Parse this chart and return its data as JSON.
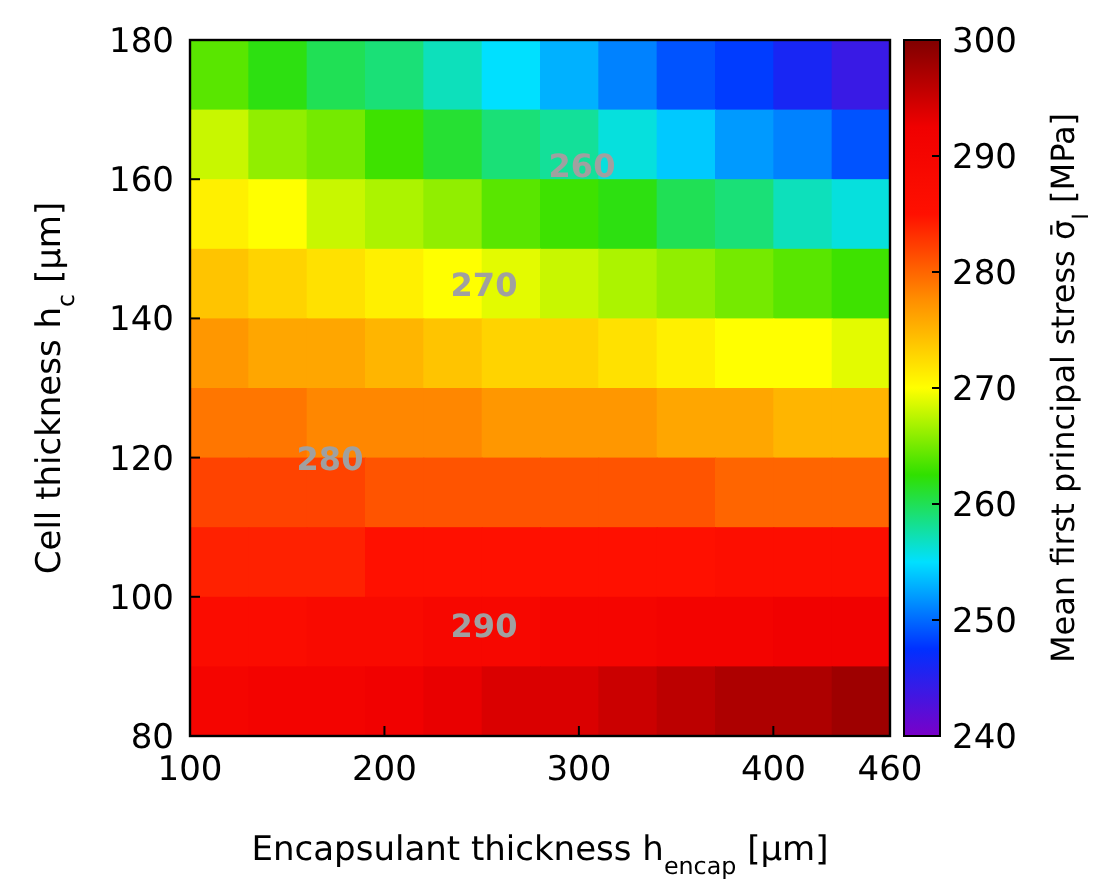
{
  "chart_data": {
    "type": "heatmap",
    "xlabel": "Encapsulant thickness h$_{encap}$ [μm]",
    "ylabel": "Cell thickness h$_{c}$ [μm]",
    "clabel": "Mean first principal stress σ̄$_{I}$ [MPa]",
    "x": [
      115,
      145,
      175,
      205,
      235,
      265,
      295,
      325,
      355,
      385,
      415,
      445
    ],
    "y": [
      175,
      165,
      155,
      145,
      135,
      125,
      115,
      105,
      95,
      85
    ],
    "xlim": [
      100,
      460
    ],
    "xticks": [
      100,
      200,
      300,
      400,
      460
    ],
    "ylim": [
      80,
      180
    ],
    "yticks": [
      80,
      100,
      120,
      140,
      160,
      180
    ],
    "clim": [
      240,
      300
    ],
    "cticks": [
      240,
      250,
      260,
      270,
      280,
      290,
      300
    ],
    "cells": [
      [
        264,
        262,
        260,
        259,
        257,
        255,
        253,
        251,
        249,
        248,
        246,
        244
      ],
      [
        268,
        266,
        265,
        263,
        261,
        259,
        258,
        256,
        254,
        252,
        251,
        249
      ],
      [
        271,
        270,
        268,
        267,
        266,
        264,
        263,
        262,
        260,
        259,
        257,
        256
      ],
      [
        274,
        273,
        272,
        271,
        270,
        269,
        268,
        267,
        266,
        265,
        264,
        263
      ],
      [
        277,
        276,
        276,
        275,
        274,
        273,
        273,
        272,
        271,
        270,
        270,
        269
      ],
      [
        279,
        279,
        278,
        278,
        278,
        277,
        277,
        277,
        276,
        276,
        275,
        275
      ],
      [
        282,
        282,
        282,
        281,
        281,
        281,
        281,
        281,
        281,
        280,
        280,
        280
      ],
      [
        284,
        284,
        284,
        285,
        285,
        285,
        285,
        285,
        285,
        286,
        286,
        286
      ],
      [
        287,
        287,
        288,
        288,
        289,
        289,
        290,
        290,
        291,
        291,
        292,
        292
      ],
      [
        290,
        291,
        291,
        292,
        293,
        294,
        294,
        295,
        296,
        297,
        297,
        298
      ]
    ],
    "annotations": [
      "260",
      "270",
      "280",
      "290"
    ]
  }
}
